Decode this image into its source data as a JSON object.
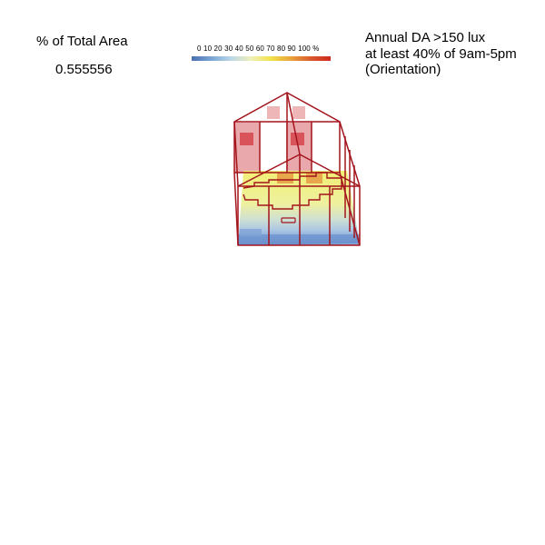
{
  "metric": {
    "label": "% of Total Area",
    "value": "0.555556"
  },
  "legend": {
    "ticks_text": "0 10 20 30 40 50 60 70 80 90 100 %",
    "colors": [
      "#4a6fb2",
      "#7aa6d4",
      "#bcd8e8",
      "#eef0b8",
      "#f2e14a",
      "#e8a33a",
      "#d95a2c",
      "#cc2a1e"
    ]
  },
  "title": {
    "line1": "Annual DA >150 lux",
    "line2": "at least 40% of 9am-5pm",
    "line3": "(Orientation)"
  },
  "colors": {
    "frame": "#a3141c",
    "window": "#e08a8e",
    "window_dark": "#d9545a",
    "floor_yellow": "#f1ee7a",
    "floor_blue": "#5d86c8",
    "floor_orange": "#e89840"
  }
}
